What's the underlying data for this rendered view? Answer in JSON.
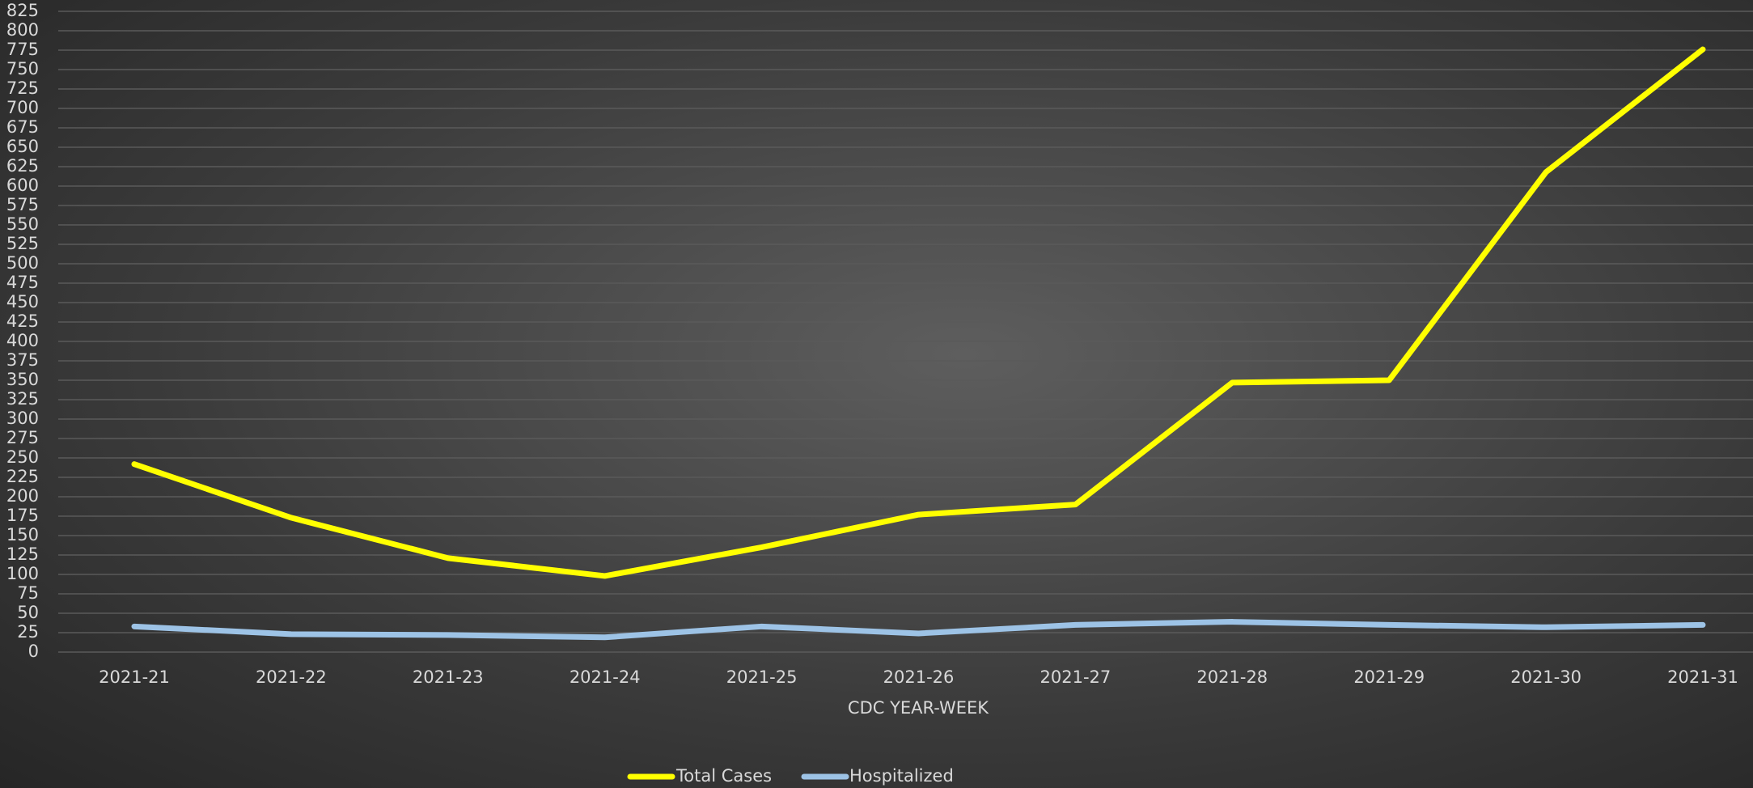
{
  "chart_data": {
    "type": "line",
    "x_label": "CDC YEAR-WEEK",
    "categories": [
      "2021-21",
      "2021-22",
      "2021-23",
      "2021-24",
      "2021-25",
      "2021-26",
      "2021-27",
      "2021-28",
      "2021-29",
      "2021-30",
      "2021-31"
    ],
    "series": [
      {
        "name": "Total Cases",
        "color": "#ffff00",
        "values": [
          242,
          173,
          121,
          98,
          135,
          177,
          190,
          347,
          350,
          618,
          776
        ]
      },
      {
        "name": "Hospitalized",
        "color": "#9dc3e6",
        "values": [
          33,
          23,
          22,
          19,
          33,
          24,
          35,
          39,
          35,
          32,
          35
        ]
      }
    ],
    "ylim": [
      0,
      825
    ],
    "yticks": [
      0,
      25,
      50,
      75,
      100,
      125,
      150,
      175,
      200,
      225,
      250,
      275,
      300,
      325,
      350,
      375,
      400,
      425,
      450,
      475,
      500,
      525,
      550,
      575,
      600,
      625,
      650,
      675,
      700,
      725,
      750,
      775,
      800,
      825
    ],
    "grid": true,
    "legend": "bottom"
  }
}
